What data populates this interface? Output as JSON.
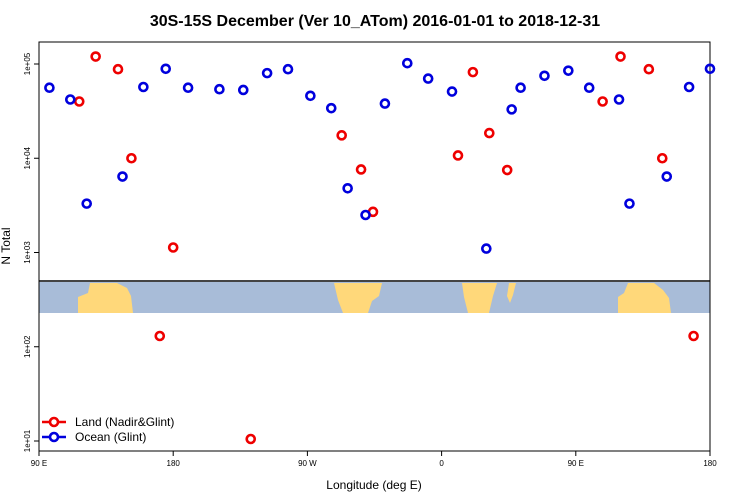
{
  "chart_data": {
    "type": "scatter",
    "title": "30S-15S December (Ver 10_ATom)   2016-01-01 to 2018-12-31",
    "xlabel": "Longitude (deg E)",
    "ylabel": "N Total",
    "xlim": [
      90,
      540
    ],
    "ylim": [
      10,
      200000
    ],
    "y_scale": "log",
    "x_ticks": [
      {
        "value": 90,
        "label": "90 E"
      },
      {
        "value": 180,
        "label": "180"
      },
      {
        "value": 270,
        "label": "90 W"
      },
      {
        "value": 360,
        "label": "0"
      },
      {
        "value": 450,
        "label": "90 E"
      },
      {
        "value": 540,
        "label": "180"
      }
    ],
    "y_ticks": [
      {
        "value": 10,
        "label": "1e+01"
      },
      {
        "value": 100,
        "label": "1e+02"
      },
      {
        "value": 1000,
        "label": "1e+03"
      },
      {
        "value": 10000,
        "label": "1e+04"
      },
      {
        "value": 100000,
        "label": "1e+05"
      }
    ],
    "legend_position": "bottom-left",
    "series": [
      {
        "name": "Land (Nadir&Glint)",
        "color": "#ee0000",
        "points": [
          {
            "x": 117,
            "y": 40000
          },
          {
            "x": 128,
            "y": 120000
          },
          {
            "x": 143,
            "y": 88000
          },
          {
            "x": 152,
            "y": 10000
          },
          {
            "x": 171,
            "y": 130
          },
          {
            "x": 180,
            "y": 1130
          },
          {
            "x": 232,
            "y": 10.5
          },
          {
            "x": 293,
            "y": 17500
          },
          {
            "x": 306,
            "y": 7600
          },
          {
            "x": 314,
            "y": 2700
          },
          {
            "x": 371,
            "y": 10700
          },
          {
            "x": 381,
            "y": 82000
          },
          {
            "x": 392,
            "y": 18500
          },
          {
            "x": 404,
            "y": 7500
          },
          {
            "x": 468,
            "y": 40000
          },
          {
            "x": 480,
            "y": 120000
          },
          {
            "x": 499,
            "y": 88000
          },
          {
            "x": 508,
            "y": 10000
          },
          {
            "x": 529,
            "y": 130
          }
        ]
      },
      {
        "name": "Ocean (Glint)",
        "color": "#0000dd",
        "points": [
          {
            "x": 97,
            "y": 56000
          },
          {
            "x": 111,
            "y": 42000
          },
          {
            "x": 122,
            "y": 3300
          },
          {
            "x": 146,
            "y": 6400
          },
          {
            "x": 160,
            "y": 57000
          },
          {
            "x": 175,
            "y": 89000
          },
          {
            "x": 190,
            "y": 56000
          },
          {
            "x": 211,
            "y": 54000
          },
          {
            "x": 227,
            "y": 53000
          },
          {
            "x": 243,
            "y": 80000
          },
          {
            "x": 257,
            "y": 88000
          },
          {
            "x": 272,
            "y": 46000
          },
          {
            "x": 286,
            "y": 34000
          },
          {
            "x": 297,
            "y": 4800
          },
          {
            "x": 309,
            "y": 2500
          },
          {
            "x": 322,
            "y": 38000
          },
          {
            "x": 337,
            "y": 102000
          },
          {
            "x": 351,
            "y": 70000
          },
          {
            "x": 367,
            "y": 51000
          },
          {
            "x": 390,
            "y": 1100
          },
          {
            "x": 407,
            "y": 33000
          },
          {
            "x": 413,
            "y": 56000
          },
          {
            "x": 429,
            "y": 75000
          },
          {
            "x": 445,
            "y": 85000
          },
          {
            "x": 459,
            "y": 56000
          },
          {
            "x": 479,
            "y": 42000
          },
          {
            "x": 486,
            "y": 3300
          },
          {
            "x": 511,
            "y": 6400
          },
          {
            "x": 526,
            "y": 57000
          },
          {
            "x": 540,
            "y": 89000
          }
        ]
      }
    ]
  }
}
